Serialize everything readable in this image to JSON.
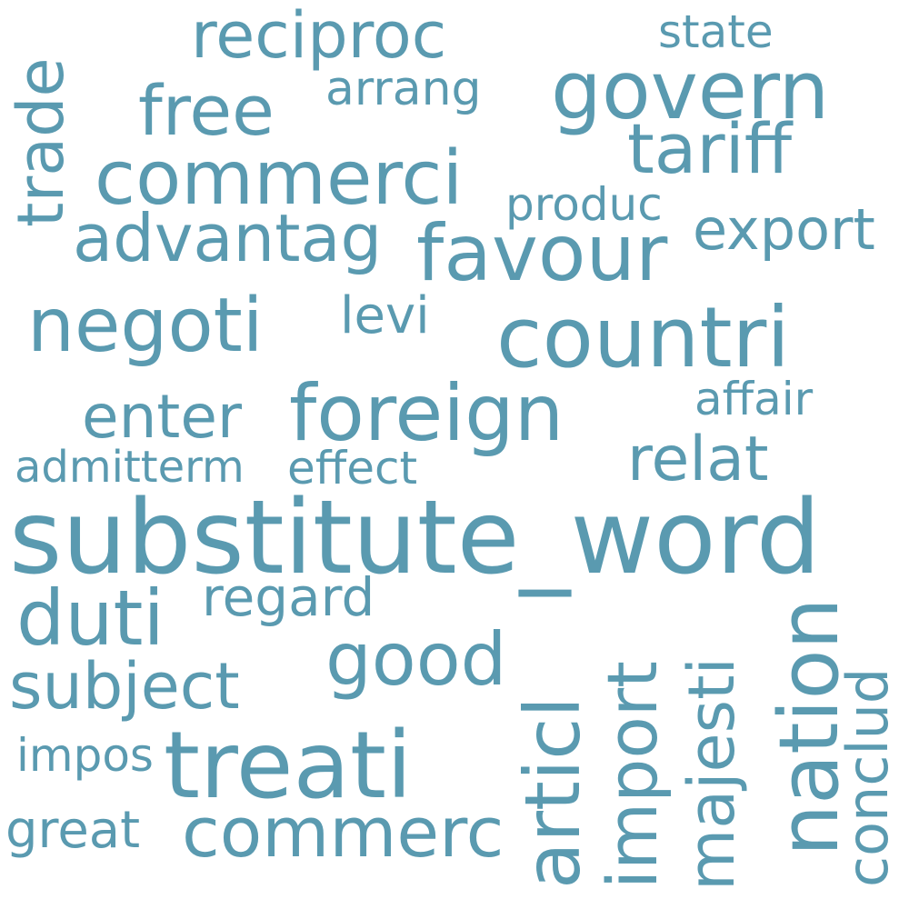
{
  "word_color": "#5a9ab0",
  "background": "#ffffff",
  "words": {
    "substitute_word": "substitute_word",
    "treati": "treati",
    "countri": "countri",
    "foreign": "foreign",
    "commerci": "commerci",
    "negoti": "negoti",
    "favour": "favour",
    "govern": "govern",
    "tariff": "tariff",
    "advantag": "advantag",
    "reciproc": "reciproc",
    "free": "free",
    "trade": "trade",
    "duti": "duti",
    "good": "good",
    "subject": "subject",
    "commerc": "commerc",
    "enter": "enter",
    "relat": "relat",
    "export": "export",
    "nation": "nation",
    "articl": "articl",
    "import": "import",
    "majesti": "majesti",
    "conclud": "conclud",
    "regard": "regard",
    "state": "state",
    "arrang": "arrang",
    "produc": "produc",
    "levi": "levi",
    "affair": "affair",
    "admitterm": "admitterm",
    "effect": "effect",
    "impos": "impos",
    "great": "great"
  }
}
